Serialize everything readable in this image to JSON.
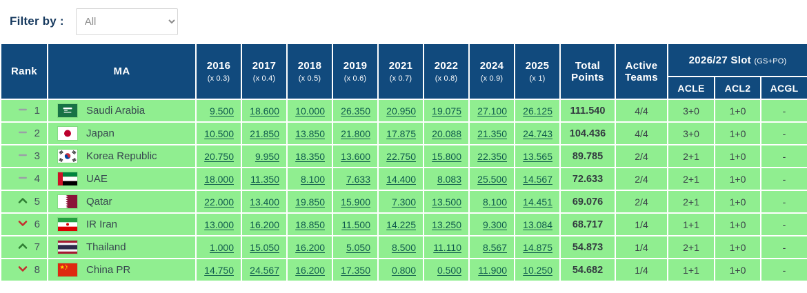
{
  "filter": {
    "label": "Filter by :",
    "value": "All",
    "options": [
      "All"
    ]
  },
  "colors": {
    "header_bg": "#114a7d",
    "row_bg": "#90ee90",
    "link": "#0e5a4c",
    "rank_up": "#2e7d32",
    "rank_down": "#c62d2d",
    "rank_same": "#9aa0a6"
  },
  "table": {
    "rank_header": "Rank",
    "ma_header": "MA",
    "year_columns": [
      {
        "year": "2016",
        "multiplier": "(x 0.3)"
      },
      {
        "year": "2017",
        "multiplier": "(x 0.4)"
      },
      {
        "year": "2018",
        "multiplier": "(x 0.5)"
      },
      {
        "year": "2019",
        "multiplier": "(x 0.6)"
      },
      {
        "year": "2021",
        "multiplier": "(x 0.7)"
      },
      {
        "year": "2022",
        "multiplier": "(x 0.8)"
      },
      {
        "year": "2024",
        "multiplier": "(x 0.9)"
      },
      {
        "year": "2025",
        "multiplier": "(x 1)"
      }
    ],
    "total_header": "Total Points",
    "active_header": "Active Teams",
    "slot_header": "2026/27 Slot",
    "slot_header_suffix": "(GS+PO)",
    "slot_columns": [
      "ACLE",
      "ACL2",
      "ACGL"
    ],
    "rows": [
      {
        "movement": "same",
        "rank": "1",
        "country": "Saudi Arabia",
        "flag": "sa",
        "points": [
          "9.500",
          "18.600",
          "10.000",
          "26.350",
          "20.950",
          "19.075",
          "27.100",
          "26.125"
        ],
        "total": "111.540",
        "active": "4/4",
        "slots": [
          "3+0",
          "1+0",
          "-"
        ]
      },
      {
        "movement": "same",
        "rank": "2",
        "country": "Japan",
        "flag": "jp",
        "points": [
          "10.500",
          "21.850",
          "13.850",
          "21.800",
          "17.875",
          "20.088",
          "21.350",
          "24.743"
        ],
        "total": "104.436",
        "active": "4/4",
        "slots": [
          "3+0",
          "1+0",
          "-"
        ]
      },
      {
        "movement": "same",
        "rank": "3",
        "country": "Korea Republic",
        "flag": "kr",
        "points": [
          "20.750",
          "9.950",
          "18.350",
          "13.600",
          "22.750",
          "15.800",
          "22.350",
          "13.565"
        ],
        "total": "89.785",
        "active": "2/4",
        "slots": [
          "2+1",
          "1+0",
          "-"
        ]
      },
      {
        "movement": "same",
        "rank": "4",
        "country": "UAE",
        "flag": "ae",
        "points": [
          "18.000",
          "11.350",
          "8.100",
          "7.633",
          "14.400",
          "8.083",
          "25.500",
          "14.567"
        ],
        "total": "72.633",
        "active": "2/4",
        "slots": [
          "2+1",
          "1+0",
          "-"
        ]
      },
      {
        "movement": "up",
        "rank": "5",
        "country": "Qatar",
        "flag": "qa",
        "points": [
          "22.000",
          "13.400",
          "19.850",
          "15.900",
          "7.300",
          "13.500",
          "8.100",
          "14.451"
        ],
        "total": "69.076",
        "active": "2/4",
        "slots": [
          "2+1",
          "1+0",
          "-"
        ]
      },
      {
        "movement": "down",
        "rank": "6",
        "country": "IR Iran",
        "flag": "ir",
        "points": [
          "13.000",
          "16.200",
          "18.850",
          "11.500",
          "14.225",
          "13.250",
          "9.300",
          "13.084"
        ],
        "total": "68.717",
        "active": "1/4",
        "slots": [
          "1+1",
          "1+0",
          "-"
        ]
      },
      {
        "movement": "up",
        "rank": "7",
        "country": "Thailand",
        "flag": "th",
        "points": [
          "1.000",
          "15.050",
          "16.200",
          "5.050",
          "8.500",
          "11.110",
          "8.567",
          "14.875"
        ],
        "total": "54.873",
        "active": "1/4",
        "slots": [
          "2+1",
          "1+0",
          "-"
        ]
      },
      {
        "movement": "down",
        "rank": "8",
        "country": "China PR",
        "flag": "cn",
        "points": [
          "14.750",
          "24.567",
          "16.200",
          "17.350",
          "0.800",
          "0.500",
          "11.900",
          "10.250"
        ],
        "total": "54.682",
        "active": "1/4",
        "slots": [
          "1+1",
          "1+0",
          "-"
        ]
      }
    ]
  }
}
